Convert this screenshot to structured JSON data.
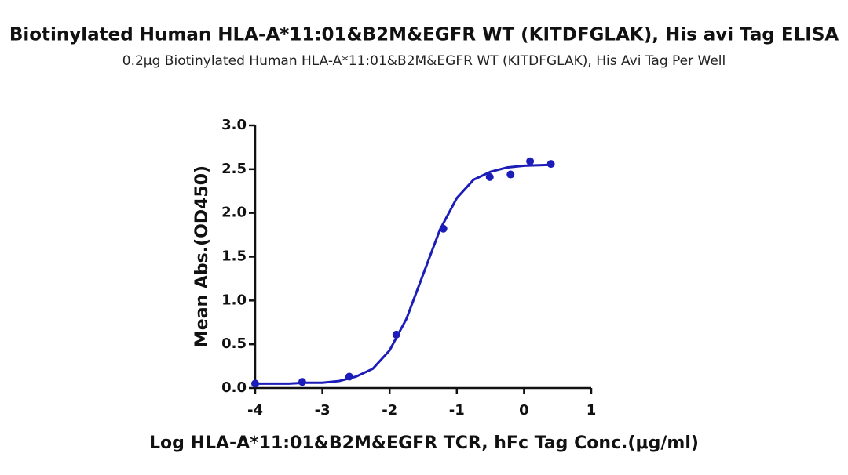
{
  "chart_data": {
    "type": "scatter",
    "title": "Biotinylated Human HLA-A*11:01&B2M&EGFR WT (KITDFGLAK), His avi Tag ELISA",
    "subtitle": "0.2μg Biotinylated Human HLA-A*11:01&B2M&EGFR WT (KITDFGLAK), His Avi Tag Per Well",
    "x_label": "Log HLA-A*11:01&B2M&EGFR TCR, hFc Tag Conc.(μg/ml)",
    "y_label": "Mean Abs.(OD450)",
    "xlim": [
      -4,
      1
    ],
    "xticks": [
      -4,
      -3,
      -2,
      -1,
      0,
      1
    ],
    "ylim": [
      0,
      3
    ],
    "yticks": [
      {
        "value": 0,
        "label": "0.0"
      },
      0.5,
      {
        "value": 1,
        "label": "1.0"
      },
      1.5,
      {
        "value": 2,
        "label": "2.0"
      },
      2.5,
      {
        "value": 3,
        "label": "3.0"
      }
    ],
    "series": [
      {
        "type": "scatter",
        "color": "#1c1cb8",
        "x": [
          -4,
          -3.3,
          -2.6,
          -1.9,
          -1.2,
          -0.51,
          -0.2,
          0.09,
          0.4
        ],
        "values": [
          0.05,
          0.07,
          0.13,
          0.61,
          1.82,
          2.41,
          2.44,
          2.59,
          2.56
        ]
      },
      {
        "type": "line",
        "color": "#1c1cb8",
        "x": [
          -4,
          -3.5,
          -3.25,
          -3,
          -2.75,
          -2.5,
          -2.25,
          -2,
          -1.75,
          -1.5,
          -1.25,
          -1,
          -0.75,
          -0.5,
          -0.25,
          0,
          0.4
        ],
        "values": [
          0.05,
          0.05,
          0.06,
          0.06,
          0.08,
          0.13,
          0.22,
          0.43,
          0.79,
          1.3,
          1.81,
          2.17,
          2.38,
          2.47,
          2.52,
          2.54,
          2.55
        ]
      }
    ]
  }
}
